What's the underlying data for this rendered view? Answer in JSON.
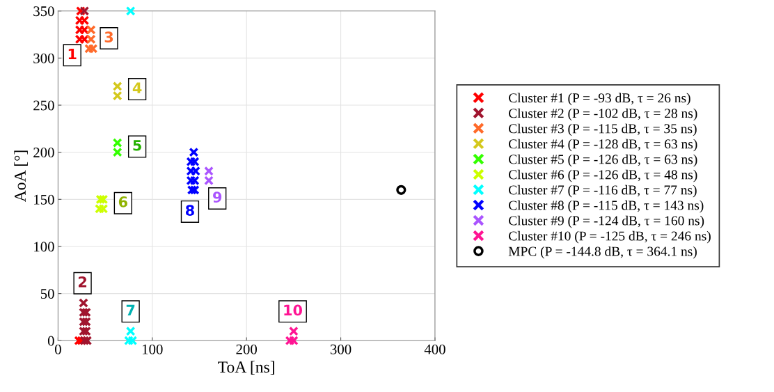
{
  "chart_data": {
    "type": "scatter",
    "xlabel": "ToA [ns]",
    "ylabel": "AoA [°]",
    "xlim": [
      0,
      400
    ],
    "ylim": [
      0,
      350
    ],
    "xticks": [
      0,
      100,
      200,
      300,
      400
    ],
    "yticks": [
      0,
      50,
      100,
      150,
      200,
      250,
      300,
      350
    ],
    "grid": true,
    "legend": "right",
    "marker": "cross",
    "series": [
      {
        "name": "Cluster #1 (P = -93 dB, τ = 26 ns)",
        "color": "#ff0000",
        "x": [
          23,
          28,
          23,
          28,
          23,
          28,
          24,
          22,
          25
        ],
        "values": [
          320,
          320,
          330,
          330,
          340,
          340,
          350,
          0,
          0
        ]
      },
      {
        "name": "Cluster #2 (P = -102 dB, τ = 28 ns)",
        "color": "#a0142e",
        "x": [
          28,
          31,
          27,
          30,
          27,
          30,
          27,
          30,
          27,
          28
        ],
        "values": [
          0,
          0,
          10,
          10,
          20,
          20,
          30,
          30,
          40,
          350
        ]
      },
      {
        "name": "Cluster #3 (P = -115 dB, τ = 35 ns)",
        "color": "#ff6a2a",
        "x": [
          35,
          35,
          33,
          37
        ],
        "values": [
          330,
          320,
          310,
          310
        ]
      },
      {
        "name": "Cluster #4 (P = -128 dB, τ = 63 ns)",
        "color": "#d4c81c",
        "x": [
          63,
          63
        ],
        "values": [
          270,
          260
        ]
      },
      {
        "name": "Cluster #5 (P = -126 dB, τ = 63 ns)",
        "color": "#33ff00",
        "x": [
          63,
          63
        ],
        "values": [
          210,
          200
        ]
      },
      {
        "name": "Cluster #6 (P = -126 dB, τ = 48 ns)",
        "color": "#ccff00",
        "x": [
          45,
          48,
          44,
          48
        ],
        "values": [
          150,
          150,
          140,
          140
        ]
      },
      {
        "name": "Cluster #7 (P = -116 dB, τ = 77 ns)",
        "color": "#00ffff",
        "x": [
          77,
          77,
          75,
          79
        ],
        "values": [
          350,
          10,
          0,
          0
        ]
      },
      {
        "name": "Cluster #8 (P = -115 dB, τ = 143 ns)",
        "color": "#0000ff",
        "x": [
          144,
          141,
          145,
          141,
          146,
          141,
          145,
          142,
          145
        ],
        "values": [
          200,
          190,
          190,
          180,
          180,
          170,
          170,
          160,
          160
        ]
      },
      {
        "name": "Cluster #9 (P = -124 dB, τ = 160 ns)",
        "color": "#aa55ff",
        "x": [
          160,
          160
        ],
        "values": [
          180,
          170
        ]
      },
      {
        "name": "Cluster #10 (P = -125 dB, τ = 246 ns)",
        "color": "#ff1493",
        "x": [
          250,
          246,
          250
        ],
        "values": [
          10,
          0,
          0
        ]
      },
      {
        "name": "MPC (P = -144.8 dB, τ = 364.1 ns)",
        "color": "#000000",
        "marker": "circle",
        "x": [
          364.1
        ],
        "values": [
          160
        ]
      }
    ],
    "annotations": [
      {
        "text": "1",
        "x": 15,
        "y": 303
      },
      {
        "text": "2",
        "x": 26,
        "y": 61
      },
      {
        "text": "3",
        "x": 54,
        "y": 321
      },
      {
        "text": "4",
        "x": 84,
        "y": 267
      },
      {
        "text": "5",
        "x": 84,
        "y": 206
      },
      {
        "text": "6",
        "x": 69,
        "y": 146
      },
      {
        "text": "7",
        "x": 77,
        "y": 31
      },
      {
        "text": "8",
        "x": 140,
        "y": 137
      },
      {
        "text": "9",
        "x": 169,
        "y": 151
      },
      {
        "text": "10",
        "x": 249,
        "y": 31
      }
    ]
  }
}
